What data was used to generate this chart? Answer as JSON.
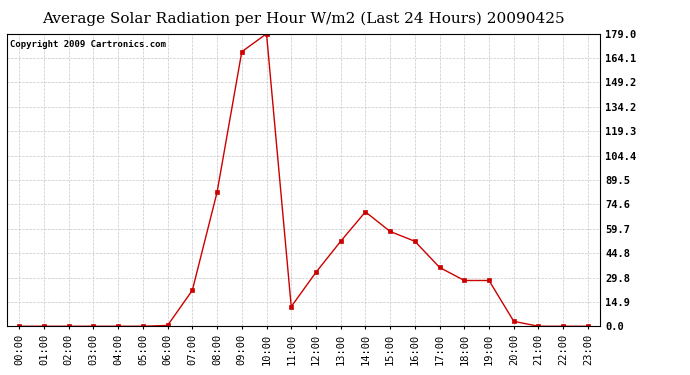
{
  "title": "Average Solar Radiation per Hour W/m2 (Last 24 Hours) 20090425",
  "copyright": "Copyright 2009 Cartronics.com",
  "x_labels": [
    "00:00",
    "01:00",
    "02:00",
    "03:00",
    "04:00",
    "05:00",
    "06:00",
    "07:00",
    "08:00",
    "09:00",
    "10:00",
    "11:00",
    "12:00",
    "13:00",
    "14:00",
    "15:00",
    "16:00",
    "17:00",
    "18:00",
    "19:00",
    "20:00",
    "21:00",
    "22:00",
    "23:00"
  ],
  "y_values": [
    0.0,
    0.0,
    0.0,
    0.0,
    0.0,
    0.0,
    0.5,
    22.0,
    82.0,
    168.0,
    179.0,
    12.0,
    33.0,
    52.0,
    70.0,
    58.0,
    52.0,
    36.0,
    28.0,
    28.0,
    3.0,
    0.0,
    0.0,
    0.0
  ],
  "line_color": "#cc0000",
  "marker": "s",
  "marker_size": 2.5,
  "background_color": "#ffffff",
  "plot_bg_color": "#ffffff",
  "grid_color": "#c8c8c8",
  "title_fontsize": 11,
  "copyright_fontsize": 6.5,
  "tick_fontsize": 7.5,
  "ytick_labels": [
    "0.0",
    "14.9",
    "29.8",
    "44.8",
    "59.7",
    "74.6",
    "89.5",
    "104.4",
    "119.3",
    "134.2",
    "149.2",
    "164.1",
    "179.0"
  ],
  "ytick_values": [
    0.0,
    14.9,
    29.8,
    44.8,
    59.7,
    74.6,
    89.5,
    104.4,
    119.3,
    134.2,
    149.2,
    164.1,
    179.0
  ],
  "ymax": 179.0,
  "ymin": 0.0
}
